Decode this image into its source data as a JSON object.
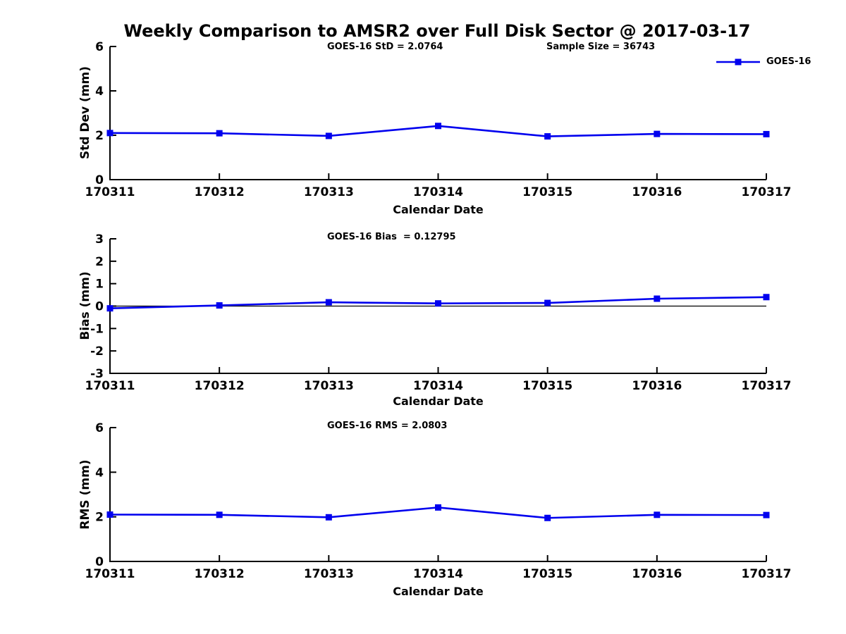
{
  "figure": {
    "title": "Weekly Comparison to AMSR2 over Full Disk Sector @ 2017-03-17",
    "background": "#ffffff"
  },
  "legend": {
    "label": "GOES-16",
    "marker": "filled-square"
  },
  "style": {
    "series_color": "#0000ee",
    "axis_color": "#000000",
    "text_color": "#000000"
  },
  "chart_data": [
    {
      "type": "line",
      "panel": "std-dev",
      "annotations": [
        "GOES-16 StD = 2.0764",
        "Sample Size = 36743"
      ],
      "xlabel": "Calendar Date",
      "ylabel": "Std Dev (mm)",
      "categories": [
        "170311",
        "170312",
        "170313",
        "170314",
        "170315",
        "170316",
        "170317"
      ],
      "series": [
        {
          "name": "GOES-16",
          "values": [
            2.1,
            2.09,
            1.97,
            2.42,
            1.95,
            2.06,
            2.05
          ]
        }
      ],
      "ylim": [
        0,
        6
      ],
      "yticks": [
        0,
        2,
        4,
        6
      ],
      "zero_line": false,
      "grid": false,
      "legend_position": "top-right"
    },
    {
      "type": "line",
      "panel": "bias",
      "annotations": [
        "GOES-16 Bias  = 0.12795"
      ],
      "xlabel": "Calendar Date",
      "ylabel": "Bias (mm)",
      "categories": [
        "170311",
        "170312",
        "170313",
        "170314",
        "170315",
        "170316",
        "170317"
      ],
      "series": [
        {
          "name": "GOES-16",
          "values": [
            -0.1,
            0.03,
            0.17,
            0.12,
            0.14,
            0.33,
            0.4
          ]
        }
      ],
      "ylim": [
        -3,
        3
      ],
      "yticks": [
        -3,
        -2,
        -1,
        0,
        1,
        2,
        3
      ],
      "zero_line": true,
      "grid": false,
      "legend_position": "none"
    },
    {
      "type": "line",
      "panel": "rms",
      "annotations": [
        "GOES-16 RMS = 2.0803"
      ],
      "xlabel": "Calendar Date",
      "ylabel": "RMS (mm)",
      "categories": [
        "170311",
        "170312",
        "170313",
        "170314",
        "170315",
        "170316",
        "170317"
      ],
      "series": [
        {
          "name": "GOES-16",
          "values": [
            2.1,
            2.09,
            1.98,
            2.42,
            1.95,
            2.09,
            2.08
          ]
        }
      ],
      "ylim": [
        0,
        6
      ],
      "yticks": [
        0,
        2,
        4,
        6
      ],
      "zero_line": false,
      "grid": false,
      "legend_position": "none"
    }
  ]
}
